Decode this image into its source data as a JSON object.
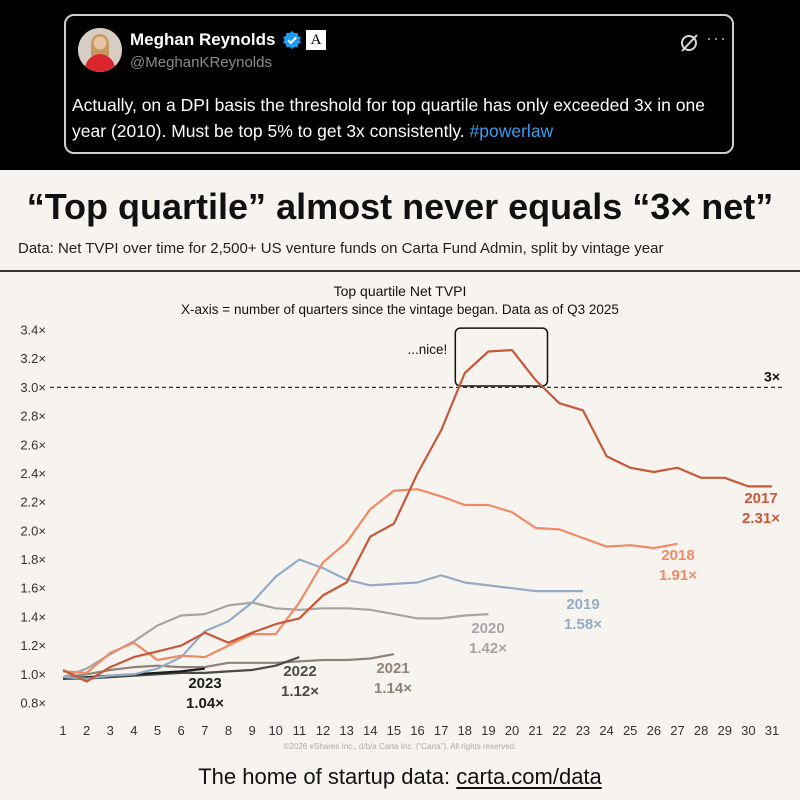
{
  "tweet": {
    "author_name": "Meghan Reynolds",
    "handle": "@MeghanKReynolds",
    "affiliation_badge": "A",
    "more_label": "···",
    "text": "Actually, on a DPI basis the threshold for top quartile has only exceeded 3x in one year (2010).  Must be top 5% to get 3x consistently.",
    "hashtag": "#powerlaw",
    "icons": {
      "verified": "verified-badge-icon",
      "grok": "grok-icon",
      "more": "more-icon"
    },
    "colors": {
      "hashtag": "#3b9cf0",
      "verified": "#1d9bf0"
    }
  },
  "headline": "“Top quartile” almost never equals “3× net”",
  "subtitle": "Data: Net TVPI over time for 2,500+ US venture funds on Carta Fund Admin, split by vintage year",
  "footer": {
    "prefix": "The home of startup data: ",
    "link": "carta.com/data"
  },
  "copyright": "©2026 eShares Inc., d/b/a Carta Inc. (“Carta”). All rights reserved.",
  "chart_data": {
    "type": "line",
    "title": "Top quartile Net TVPI",
    "subtitle": "X-axis = number of quarters since the vintage began. Data as of Q3 2025",
    "x_ticks": [
      1,
      2,
      3,
      4,
      5,
      6,
      7,
      8,
      9,
      10,
      11,
      12,
      13,
      14,
      15,
      16,
      17,
      18,
      19,
      20,
      21,
      22,
      23,
      24,
      25,
      26,
      27,
      28,
      29,
      30,
      31
    ],
    "y_ticks": [
      0.8,
      1.0,
      1.2,
      1.4,
      1.6,
      1.8,
      2.0,
      2.2,
      2.4,
      2.6,
      2.8,
      3.0,
      3.2,
      3.4
    ],
    "y_tick_labels": [
      "0.8×",
      "1.0×",
      "1.2×",
      "1.4×",
      "1.6×",
      "1.8×",
      "2.0×",
      "2.2×",
      "2.4×",
      "2.6×",
      "2.8×",
      "3.0×",
      "3.2×",
      "3.4×"
    ],
    "xlim": [
      1,
      31
    ],
    "ylim": [
      0.8,
      3.4
    ],
    "grid": false,
    "reference_line": {
      "y": 3.0,
      "label": "3×",
      "style": "dashed"
    },
    "annotation": {
      "text": "...nice!",
      "x_range": [
        17.6,
        21.5
      ],
      "y_range": [
        3.01,
        3.26
      ]
    },
    "series": [
      {
        "name": "2017",
        "value_label": "2.31×",
        "color": "#c8583a",
        "x": [
          1,
          2,
          3,
          4,
          5,
          6,
          7,
          8,
          9,
          10,
          11,
          12,
          13,
          14,
          15,
          16,
          17,
          18,
          19,
          20,
          21,
          22,
          23,
          24,
          25,
          26,
          27,
          28,
          29,
          30,
          31
        ],
        "y": [
          1.03,
          0.95,
          1.05,
          1.12,
          1.16,
          1.2,
          1.29,
          1.22,
          1.29,
          1.35,
          1.39,
          1.55,
          1.64,
          1.96,
          2.05,
          2.4,
          2.7,
          3.1,
          3.25,
          3.26,
          3.05,
          2.89,
          2.84,
          2.52,
          2.44,
          2.41,
          2.44,
          2.37,
          2.37,
          2.31,
          2.31
        ]
      },
      {
        "name": "2018",
        "value_label": "1.91×",
        "color": "#ef8a66",
        "x": [
          1,
          2,
          3,
          4,
          5,
          6,
          7,
          8,
          9,
          10,
          11,
          12,
          13,
          14,
          15,
          16,
          17,
          18,
          19,
          20,
          21,
          22,
          23,
          24,
          25,
          26,
          27
        ],
        "y": [
          1.02,
          1.01,
          1.15,
          1.22,
          1.1,
          1.13,
          1.12,
          1.2,
          1.28,
          1.28,
          1.5,
          1.78,
          1.92,
          2.15,
          2.28,
          2.29,
          2.24,
          2.18,
          2.18,
          2.13,
          2.02,
          2.01,
          1.95,
          1.89,
          1.9,
          1.88,
          1.91
        ]
      },
      {
        "name": "2019",
        "value_label": "1.58×",
        "color": "#93acc5",
        "x": [
          1,
          2,
          3,
          4,
          5,
          6,
          7,
          8,
          9,
          10,
          11,
          12,
          13,
          14,
          15,
          16,
          17,
          18,
          19,
          20,
          21,
          22,
          23
        ],
        "y": [
          0.98,
          0.97,
          0.99,
          1.0,
          1.04,
          1.12,
          1.3,
          1.37,
          1.5,
          1.68,
          1.8,
          1.74,
          1.66,
          1.62,
          1.63,
          1.64,
          1.69,
          1.64,
          1.62,
          1.6,
          1.58,
          1.58,
          1.58
        ]
      },
      {
        "name": "2020",
        "value_label": "1.42×",
        "color": "#a5a5a5",
        "x": [
          1,
          2,
          3,
          4,
          5,
          6,
          7,
          8,
          9,
          10,
          11,
          12,
          13,
          14,
          15,
          16,
          17,
          18,
          19
        ],
        "y": [
          0.98,
          1.04,
          1.14,
          1.23,
          1.34,
          1.41,
          1.42,
          1.48,
          1.5,
          1.46,
          1.45,
          1.46,
          1.46,
          1.45,
          1.42,
          1.39,
          1.39,
          1.41,
          1.42
        ]
      },
      {
        "name": "2021",
        "value_label": "1.14×",
        "color": "#8f8279",
        "x": [
          1,
          2,
          3,
          4,
          5,
          6,
          7,
          8,
          9,
          10,
          11,
          12,
          13,
          14,
          15
        ],
        "y": [
          0.98,
          1.0,
          1.03,
          1.05,
          1.06,
          1.05,
          1.05,
          1.08,
          1.08,
          1.08,
          1.09,
          1.1,
          1.1,
          1.11,
          1.14
        ]
      },
      {
        "name": "2022",
        "value_label": "1.12×",
        "color": "#4a4a4a",
        "x": [
          1,
          2,
          3,
          4,
          5,
          6,
          7,
          8,
          9,
          10,
          11
        ],
        "y": [
          0.97,
          0.97,
          0.98,
          0.99,
          1.0,
          1.01,
          1.01,
          1.02,
          1.03,
          1.06,
          1.12
        ]
      },
      {
        "name": "2023",
        "value_label": "1.04×",
        "color": "#1c1c1c",
        "x": [
          1,
          2,
          3,
          4,
          5,
          6,
          7
        ],
        "y": [
          0.97,
          0.98,
          0.99,
          1.0,
          1.01,
          1.02,
          1.04
        ]
      }
    ]
  }
}
